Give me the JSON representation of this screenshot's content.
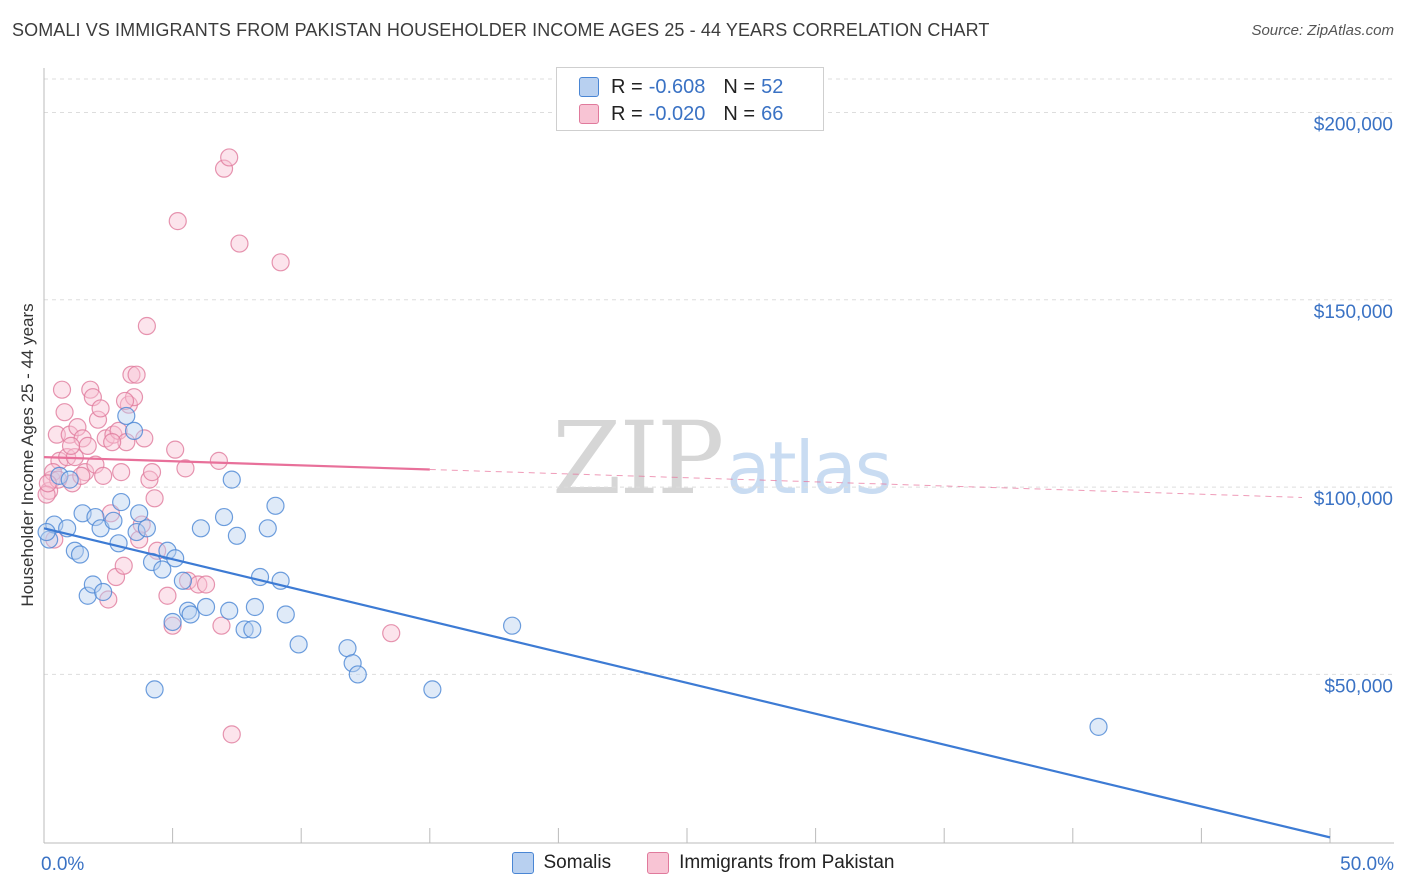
{
  "header": {
    "title": "SOMALI VS IMMIGRANTS FROM PAKISTAN HOUSEHOLDER INCOME AGES 25 - 44 YEARS CORRELATION CHART",
    "source": "Source: ZipAtlas.com"
  },
  "watermark": {
    "zip": "ZIP",
    "atlas": "atlas"
  },
  "legend": {
    "rows": [
      {
        "r_label": "R =",
        "r_value": "-0.608",
        "n_label": "N =",
        "n_value": "52"
      },
      {
        "r_label": "R =",
        "r_value": "-0.020",
        "n_label": "N =",
        "n_value": "66"
      }
    ]
  },
  "bottom_legend": {
    "series1": "Somalis",
    "series2": "Immigrants from Pakistan"
  },
  "colors": {
    "blue_fill": "#b8d0f0",
    "blue_stroke": "#4a86d4",
    "blue_line": "#3d7bd4",
    "pink_fill": "#f8c4d4",
    "pink_stroke": "#e07a9c",
    "pink_line": "#e8709a",
    "grid": "#dddddd",
    "tick_text": "#3a72c4"
  },
  "chart_data": {
    "type": "scatter",
    "title": "SOMALI VS IMMIGRANTS FROM PAKISTAN HOUSEHOLDER INCOME AGES 25 - 44 YEARS CORRELATION CHART",
    "xlabel": "",
    "ylabel": "Householder Income Ages 25 - 44 years",
    "xlim": [
      0,
      50
    ],
    "ylim": [
      5000,
      210000
    ],
    "x_tick_labels": [
      "0.0%",
      "50.0%"
    ],
    "y_ticks": [
      50000,
      100000,
      150000,
      200000
    ],
    "y_tick_labels": [
      "$50,000",
      "$100,000",
      "$150,000",
      "$200,000"
    ],
    "grid": true,
    "series": [
      {
        "name": "Somalis",
        "R": -0.608,
        "N": 52,
        "trend": {
          "x": [
            0,
            50
          ],
          "y": [
            89000,
            6500
          ],
          "dashed_from": null
        },
        "points": [
          [
            0.2,
            86000
          ],
          [
            0.4,
            90000
          ],
          [
            0.6,
            103000
          ],
          [
            0.9,
            89000
          ],
          [
            1.0,
            102000
          ],
          [
            1.2,
            83000
          ],
          [
            1.4,
            82000
          ],
          [
            1.5,
            93000
          ],
          [
            1.7,
            71000
          ],
          [
            1.9,
            74000
          ],
          [
            2.0,
            92000
          ],
          [
            2.2,
            89000
          ],
          [
            2.3,
            72000
          ],
          [
            2.7,
            91000
          ],
          [
            2.9,
            85000
          ],
          [
            3.0,
            96000
          ],
          [
            3.2,
            119000
          ],
          [
            3.5,
            115000
          ],
          [
            3.6,
            88000
          ],
          [
            3.7,
            93000
          ],
          [
            4.0,
            89000
          ],
          [
            4.2,
            80000
          ],
          [
            4.3,
            46000
          ],
          [
            4.6,
            78000
          ],
          [
            4.8,
            83000
          ],
          [
            5.0,
            64000
          ],
          [
            5.1,
            81000
          ],
          [
            5.4,
            75000
          ],
          [
            5.6,
            67000
          ],
          [
            5.7,
            66000
          ],
          [
            6.1,
            89000
          ],
          [
            6.3,
            68000
          ],
          [
            7.0,
            92000
          ],
          [
            7.2,
            67000
          ],
          [
            7.3,
            102000
          ],
          [
            7.5,
            87000
          ],
          [
            7.8,
            62000
          ],
          [
            8.1,
            62000
          ],
          [
            8.2,
            68000
          ],
          [
            8.4,
            76000
          ],
          [
            8.7,
            89000
          ],
          [
            9.0,
            95000
          ],
          [
            9.2,
            75000
          ],
          [
            9.4,
            66000
          ],
          [
            9.9,
            58000
          ],
          [
            11.8,
            57000
          ],
          [
            12.0,
            53000
          ],
          [
            12.2,
            50000
          ],
          [
            15.1,
            46000
          ],
          [
            18.2,
            63000
          ],
          [
            41.0,
            36000
          ],
          [
            0.1,
            88000
          ]
        ]
      },
      {
        "name": "Immigrants from Pakistan",
        "R": -0.02,
        "N": 66,
        "trend": {
          "x": [
            0,
            50
          ],
          "y": [
            108000,
            97000
          ],
          "dashed_from": 15
        },
        "points": [
          [
            0.2,
            99000
          ],
          [
            0.3,
            102000
          ],
          [
            0.4,
            86000
          ],
          [
            0.5,
            114000
          ],
          [
            0.6,
            107000
          ],
          [
            0.7,
            126000
          ],
          [
            0.8,
            120000
          ],
          [
            0.9,
            108000
          ],
          [
            1.0,
            114000
          ],
          [
            1.1,
            101000
          ],
          [
            1.2,
            108000
          ],
          [
            1.3,
            116000
          ],
          [
            1.5,
            113000
          ],
          [
            1.6,
            104000
          ],
          [
            1.7,
            111000
          ],
          [
            1.8,
            126000
          ],
          [
            1.9,
            124000
          ],
          [
            2.0,
            106000
          ],
          [
            2.1,
            118000
          ],
          [
            2.2,
            121000
          ],
          [
            2.3,
            103000
          ],
          [
            2.4,
            113000
          ],
          [
            2.5,
            70000
          ],
          [
            2.6,
            93000
          ],
          [
            2.7,
            114000
          ],
          [
            2.8,
            76000
          ],
          [
            2.9,
            115000
          ],
          [
            3.0,
            104000
          ],
          [
            3.1,
            79000
          ],
          [
            3.2,
            112000
          ],
          [
            3.3,
            122000
          ],
          [
            3.4,
            130000
          ],
          [
            3.5,
            124000
          ],
          [
            3.6,
            130000
          ],
          [
            3.7,
            86000
          ],
          [
            3.8,
            90000
          ],
          [
            3.9,
            113000
          ],
          [
            4.0,
            143000
          ],
          [
            4.1,
            102000
          ],
          [
            4.2,
            104000
          ],
          [
            4.3,
            97000
          ],
          [
            4.4,
            83000
          ],
          [
            4.8,
            71000
          ],
          [
            5.0,
            63000
          ],
          [
            5.1,
            110000
          ],
          [
            5.2,
            171000
          ],
          [
            5.5,
            105000
          ],
          [
            5.6,
            75000
          ],
          [
            6.0,
            74000
          ],
          [
            6.3,
            74000
          ],
          [
            6.8,
            107000
          ],
          [
            6.9,
            63000
          ],
          [
            7.0,
            185000
          ],
          [
            7.2,
            188000
          ],
          [
            7.3,
            34000
          ],
          [
            7.6,
            165000
          ],
          [
            9.2,
            160000
          ],
          [
            13.5,
            61000
          ],
          [
            0.1,
            98000
          ],
          [
            0.35,
            104000
          ],
          [
            0.55,
            102000
          ],
          [
            1.05,
            111000
          ],
          [
            1.45,
            103000
          ],
          [
            2.65,
            112000
          ],
          [
            3.15,
            123000
          ],
          [
            0.15,
            101000
          ]
        ]
      }
    ]
  }
}
